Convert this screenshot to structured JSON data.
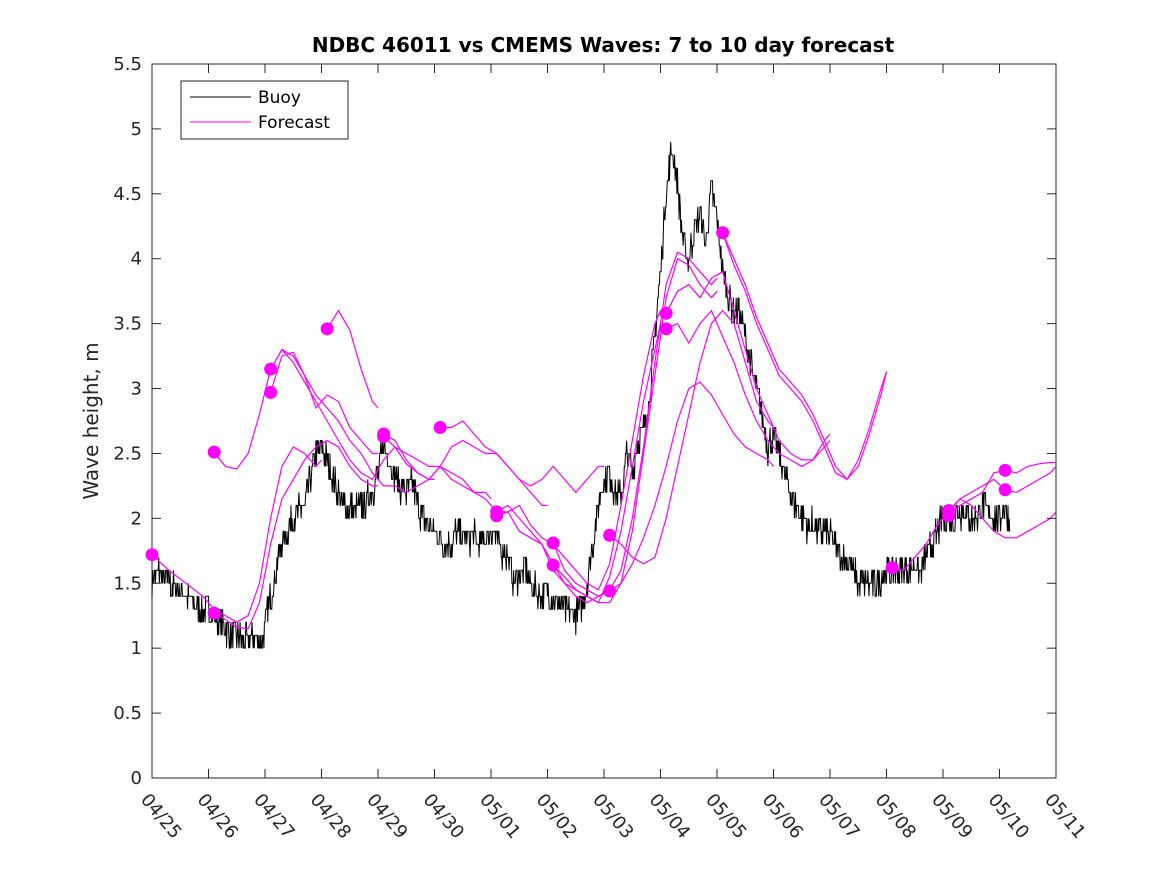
{
  "chart_data": {
    "type": "line",
    "title": "NDBC 46011 vs CMEMS Waves: 7 to 10 day forecast",
    "xlabel": "",
    "ylabel": "Wave height, m",
    "x_tick_labels": [
      "04/25",
      "04/26",
      "04/27",
      "04/28",
      "04/29",
      "04/30",
      "05/01",
      "05/02",
      "05/03",
      "05/04",
      "05/05",
      "05/06",
      "05/07",
      "05/08",
      "05/09",
      "05/10",
      "05/11"
    ],
    "xlim_days": [
      0,
      16
    ],
    "ylim": [
      0,
      5.5
    ],
    "y_ticks": [
      0,
      0.5,
      1,
      1.5,
      2,
      2.5,
      3,
      3.5,
      4,
      4.5,
      5,
      5.5
    ],
    "y_tick_labels": [
      "0",
      "0.5",
      "1",
      "1.5",
      "2",
      "2.5",
      "3",
      "3.5",
      "4",
      "4.5",
      "5",
      "5.5"
    ],
    "grid": false,
    "legend": {
      "placement": "top-left",
      "entries": [
        {
          "name": "Buoy",
          "color": "#000000"
        },
        {
          "name": "Forecast",
          "color": "#ff00ff"
        }
      ]
    },
    "buoy_color": "#000000",
    "forecast_color": "#ff00ff",
    "buoy": {
      "name": "Buoy",
      "x": [
        0,
        0.1,
        0.2,
        0.3,
        0.4,
        0.5,
        0.6,
        0.7,
        0.8,
        0.9,
        1.0,
        1.1,
        1.2,
        1.3,
        1.4,
        1.5,
        1.6,
        1.7,
        1.8,
        1.9,
        2.0,
        2.1,
        2.2,
        2.3,
        2.4,
        2.5,
        2.6,
        2.7,
        2.8,
        2.9,
        3.0,
        3.1,
        3.2,
        3.3,
        3.4,
        3.5,
        3.6,
        3.7,
        3.8,
        3.9,
        4.0,
        4.1,
        4.2,
        4.3,
        4.4,
        4.5,
        4.6,
        4.7,
        4.8,
        4.9,
        5.0,
        5.1,
        5.2,
        5.3,
        5.4,
        5.5,
        5.6,
        5.7,
        5.8,
        5.9,
        6.0,
        6.1,
        6.2,
        6.3,
        6.4,
        6.5,
        6.6,
        6.7,
        6.8,
        6.9,
        7.0,
        7.1,
        7.2,
        7.3,
        7.4,
        7.5,
        7.6,
        7.7,
        7.8,
        7.9,
        8.0,
        8.1,
        8.2,
        8.3,
        8.4,
        8.5,
        8.6,
        8.7,
        8.8,
        8.9,
        9.0,
        9.1,
        9.2,
        9.3,
        9.4,
        9.5,
        9.6,
        9.7,
        9.8,
        9.9,
        10.0,
        10.1,
        10.2,
        10.3,
        10.4,
        10.5,
        10.6,
        10.7,
        10.8,
        10.9,
        11.0,
        11.1,
        11.2,
        11.3,
        11.4,
        11.5,
        11.6,
        11.7,
        11.8,
        11.9,
        12.0,
        12.1,
        12.2,
        12.3,
        12.4,
        12.5,
        12.6,
        12.7,
        12.8,
        12.9,
        13.0,
        13.1,
        13.2,
        13.3,
        13.4,
        13.5,
        13.6,
        13.7,
        13.8,
        13.9,
        14.0,
        14.1,
        14.2,
        14.3,
        14.4,
        14.5,
        14.6,
        14.7,
        14.8,
        14.9,
        15.0,
        15.1,
        15.2
      ],
      "y": [
        1.5,
        1.6,
        1.55,
        1.5,
        1.45,
        1.45,
        1.4,
        1.35,
        1.3,
        1.3,
        1.3,
        1.25,
        1.2,
        1.15,
        1.1,
        1.1,
        1.05,
        1.05,
        1.1,
        1.05,
        1.15,
        1.4,
        1.6,
        1.8,
        1.9,
        2.0,
        2.05,
        2.1,
        2.3,
        2.5,
        2.55,
        2.45,
        2.3,
        2.2,
        2.1,
        2.1,
        2.05,
        2.1,
        2.15,
        2.2,
        2.35,
        2.55,
        2.45,
        2.3,
        2.25,
        2.2,
        2.3,
        2.1,
        2.0,
        1.95,
        1.9,
        1.85,
        1.8,
        1.8,
        1.9,
        1.85,
        1.85,
        1.85,
        1.8,
        1.85,
        1.9,
        1.85,
        1.75,
        1.7,
        1.5,
        1.55,
        1.65,
        1.5,
        1.45,
        1.4,
        1.45,
        1.4,
        1.35,
        1.3,
        1.3,
        1.25,
        1.3,
        1.5,
        1.8,
        2.1,
        2.3,
        2.35,
        2.2,
        2.2,
        2.5,
        2.35,
        2.6,
        2.7,
        2.9,
        3.4,
        3.9,
        4.5,
        4.85,
        4.6,
        4.1,
        4.0,
        4.2,
        4.35,
        4.1,
        4.55,
        4.3,
        3.9,
        3.7,
        3.6,
        3.6,
        3.4,
        3.2,
        3.0,
        2.8,
        2.55,
        2.65,
        2.5,
        2.35,
        2.2,
        2.1,
        2.0,
        1.95,
        1.95,
        1.9,
        1.9,
        1.85,
        1.8,
        1.7,
        1.7,
        1.6,
        1.5,
        1.5,
        1.5,
        1.5,
        1.55,
        1.6,
        1.55,
        1.6,
        1.6,
        1.6,
        1.65,
        1.6,
        1.7,
        1.8,
        1.9,
        2.0,
        2.0,
        2.0,
        2.05,
        2.05,
        2.0,
        2.0,
        2.1,
        2.05,
        2.0,
        2.0,
        2.1,
        1.95
      ]
    },
    "forecast_runs": [
      {
        "x": [
          0,
          0.3,
          0.6,
          0.9,
          1.1,
          1.3,
          1.5,
          1.7,
          1.9,
          2.1,
          2.3,
          2.5,
          2.7,
          2.9,
          3.0
        ],
        "y": [
          1.72,
          1.6,
          1.5,
          1.4,
          1.3,
          1.25,
          1.2,
          1.25,
          1.5,
          2.0,
          2.4,
          2.55,
          2.5,
          2.4,
          2.45
        ]
      },
      {
        "x": [
          1.1,
          1.3,
          1.5,
          1.7,
          1.9,
          2.1,
          2.3,
          2.5,
          2.7,
          2.9,
          3.1,
          3.3,
          3.5,
          3.7,
          3.9,
          4.0
        ],
        "y": [
          1.27,
          1.22,
          1.16,
          1.15,
          1.35,
          1.8,
          2.15,
          2.3,
          2.45,
          2.55,
          2.6,
          2.55,
          2.4,
          2.3,
          2.25,
          2.25
        ]
      },
      {
        "x": [
          1.1,
          1.3,
          1.5,
          1.7,
          1.9,
          2.1,
          2.3,
          2.5,
          2.7,
          2.9,
          3.1,
          3.3,
          3.5,
          3.7,
          3.9,
          4.1,
          4.3,
          4.5,
          4.7,
          4.9,
          5.0
        ],
        "y": [
          2.51,
          2.4,
          2.38,
          2.5,
          2.8,
          3.15,
          3.3,
          3.25,
          3.1,
          2.95,
          2.85,
          2.75,
          2.6,
          2.5,
          2.35,
          2.25,
          2.25,
          2.2,
          2.25,
          2.3,
          2.3
        ]
      },
      {
        "x": [
          2.1,
          2.3,
          2.5,
          2.7,
          2.9,
          3.1,
          3.3,
          3.5,
          3.7,
          3.9,
          4.1,
          4.3,
          4.5,
          4.7,
          4.9,
          5.1,
          5.3,
          5.5,
          5.7,
          5.9,
          6.0
        ],
        "y": [
          3.15,
          3.3,
          3.2,
          3.05,
          2.9,
          2.75,
          2.6,
          2.45,
          2.35,
          2.3,
          2.45,
          2.55,
          2.5,
          2.45,
          2.4,
          2.4,
          2.3,
          2.25,
          2.2,
          2.2,
          2.15
        ]
      },
      {
        "x": [
          2.1,
          2.3,
          2.5,
          2.7,
          2.9,
          3.1,
          3.3,
          3.5,
          3.7,
          3.9,
          4.0
        ],
        "y": [
          2.97,
          3.25,
          3.28,
          3.1,
          2.85,
          2.95,
          2.9,
          2.7,
          2.6,
          2.5,
          2.5
        ]
      },
      {
        "x": [
          3.1,
          3.3,
          3.5,
          3.7,
          3.9,
          4.0
        ],
        "y": [
          3.46,
          3.6,
          3.45,
          3.15,
          2.9,
          2.85
        ]
      },
      {
        "x": [
          4.1,
          4.3,
          4.5,
          4.7,
          4.9,
          5.1,
          5.3,
          5.5,
          5.7,
          5.9,
          6.1,
          6.3,
          6.5,
          6.7,
          6.9,
          7.1,
          7.3,
          7.5,
          7.7,
          7.9,
          8.0
        ],
        "y": [
          2.65,
          2.6,
          2.45,
          2.35,
          2.3,
          2.4,
          2.35,
          2.3,
          2.2,
          2.15,
          2.05,
          2.05,
          1.9,
          1.85,
          1.8,
          1.65,
          1.5,
          1.4,
          1.35,
          1.4,
          1.42
        ]
      },
      {
        "x": [
          4.1,
          4.3,
          4.5,
          4.7,
          4.9,
          5.1,
          5.3,
          5.5,
          5.7,
          5.9,
          6.1,
          6.3,
          6.5,
          6.7,
          6.9,
          7.0
        ],
        "y": [
          2.63,
          2.55,
          2.42,
          2.35,
          2.3,
          2.4,
          2.55,
          2.6,
          2.55,
          2.5,
          2.5,
          2.4,
          2.3,
          2.2,
          2.1,
          2.1
        ]
      },
      {
        "x": [
          5.1,
          5.3,
          5.5,
          5.7,
          5.9,
          6.1,
          6.3,
          6.5,
          6.7,
          6.9,
          7.1,
          7.3,
          7.5,
          7.7,
          7.9,
          8.0
        ],
        "y": [
          2.7,
          2.7,
          2.75,
          2.65,
          2.55,
          2.5,
          2.4,
          2.3,
          2.25,
          2.3,
          2.4,
          2.3,
          2.2,
          2.3,
          2.4,
          2.4
        ]
      },
      {
        "x": [
          6.1,
          6.3,
          6.5,
          6.7,
          6.9,
          7.1,
          7.3,
          7.5,
          7.7,
          7.9,
          8.1,
          8.3,
          8.5,
          8.7,
          8.9,
          9.0
        ],
        "y": [
          2.05,
          2.1,
          2.0,
          1.9,
          1.8,
          1.6,
          1.5,
          1.45,
          1.4,
          1.35,
          1.55,
          1.9,
          2.4,
          2.9,
          3.3,
          3.5
        ]
      },
      {
        "x": [
          6.1,
          6.3,
          6.5,
          6.7,
          6.9,
          7.1,
          7.3,
          7.5,
          7.7,
          7.9,
          8.1,
          8.3,
          8.5,
          8.7,
          8.9,
          9.0
        ],
        "y": [
          2.02,
          2.05,
          2.1,
          1.95,
          1.85,
          1.8,
          1.7,
          1.6,
          1.5,
          1.45,
          1.65,
          2.1,
          2.6,
          3.1,
          3.5,
          3.6
        ]
      },
      {
        "x": [
          7.1,
          7.3,
          7.5,
          7.7,
          7.9,
          8.1,
          8.3,
          8.5,
          8.7,
          8.9,
          9.1,
          9.3,
          9.5,
          9.7,
          9.9,
          10.0
        ],
        "y": [
          1.81,
          1.6,
          1.5,
          1.45,
          1.4,
          1.45,
          1.6,
          2.0,
          2.55,
          3.2,
          3.8,
          4.05,
          4.0,
          3.9,
          3.8,
          3.85
        ]
      },
      {
        "x": [
          7.1,
          7.3,
          7.5,
          7.7,
          7.9,
          8.1,
          8.3,
          8.5,
          8.7,
          8.9,
          9.1,
          9.3,
          9.5,
          9.7,
          9.9,
          10.0
        ],
        "y": [
          1.64,
          1.55,
          1.45,
          1.4,
          1.35,
          1.35,
          1.5,
          1.9,
          2.5,
          3.1,
          3.7,
          4.0,
          3.95,
          3.8,
          3.7,
          3.75
        ]
      },
      {
        "x": [
          8.1,
          8.3,
          8.5,
          8.7,
          8.9,
          9.1,
          9.3,
          9.5,
          9.7,
          9.9,
          10.1,
          10.3,
          10.5,
          10.7,
          10.9,
          11.0
        ],
        "y": [
          1.87,
          1.8,
          1.7,
          1.65,
          1.7,
          2.0,
          2.4,
          2.8,
          3.2,
          3.5,
          3.6,
          3.5,
          3.2,
          2.9,
          2.75,
          2.7
        ]
      },
      {
        "x": [
          8.1,
          8.3,
          8.5,
          8.7,
          8.9,
          9.1,
          9.3,
          9.5,
          9.7,
          9.9,
          10.1,
          10.3,
          10.5,
          10.7,
          10.9,
          11.0
        ],
        "y": [
          1.44,
          1.5,
          1.65,
          1.85,
          2.1,
          2.4,
          2.75,
          3.0,
          3.05,
          2.95,
          2.8,
          2.65,
          2.55,
          2.5,
          2.45,
          2.4
        ]
      },
      {
        "x": [
          9.1,
          9.3,
          9.5,
          9.7,
          9.9,
          10.1,
          10.3,
          10.5,
          10.7,
          10.9,
          11.1,
          11.3,
          11.5,
          11.7,
          11.9,
          12.0
        ],
        "y": [
          3.58,
          3.75,
          3.8,
          3.7,
          3.85,
          3.9,
          3.6,
          3.3,
          3.0,
          2.8,
          2.6,
          2.5,
          2.45,
          2.45,
          2.55,
          2.6
        ]
      },
      {
        "x": [
          9.1,
          9.3,
          9.5,
          9.7,
          9.9,
          10.1,
          10.3,
          10.5,
          10.7,
          10.9,
          11.1,
          11.3,
          11.5,
          11.7,
          11.9,
          12.0
        ],
        "y": [
          3.46,
          3.5,
          3.35,
          3.5,
          3.6,
          3.4,
          3.2,
          2.95,
          2.75,
          2.6,
          2.5,
          2.45,
          2.4,
          2.45,
          2.6,
          2.65
        ]
      },
      {
        "x": [
          10.1,
          10.3,
          10.5,
          10.7,
          10.9,
          11.1,
          11.3,
          11.5,
          11.7,
          11.9,
          12.1,
          12.3,
          12.5,
          12.7,
          12.9,
          13.0
        ],
        "y": [
          4.2,
          4.0,
          3.8,
          3.55,
          3.35,
          3.15,
          3.05,
          2.95,
          2.8,
          2.6,
          2.4,
          2.3,
          2.4,
          2.65,
          2.95,
          3.13
        ]
      },
      {
        "x": [
          10.1,
          10.3,
          10.5,
          10.7,
          10.9,
          11.1,
          11.3,
          11.5,
          11.7,
          11.9,
          12.1,
          12.3,
          12.5,
          12.7,
          12.9,
          13.0
        ],
        "y": [
          4.2,
          3.95,
          3.75,
          3.5,
          3.3,
          3.1,
          3.0,
          2.9,
          2.75,
          2.55,
          2.35,
          2.3,
          2.45,
          2.7,
          3.0,
          3.13
        ]
      },
      {
        "x": [
          13.1,
          13.3,
          13.5,
          13.7,
          13.9,
          14.1,
          14.3,
          14.5,
          14.7,
          14.9,
          15.1,
          15.3,
          15.5,
          15.7,
          15.9,
          16.0
        ],
        "y": [
          1.62,
          1.6,
          1.7,
          1.8,
          1.95,
          2.05,
          2.15,
          2.1,
          2.0,
          1.9,
          1.85,
          1.85,
          1.9,
          1.95,
          2.0,
          2.05
        ]
      },
      {
        "x": [
          14.1,
          14.3,
          14.5,
          14.7,
          14.9,
          15.1,
          15.3,
          15.5,
          15.7,
          15.9,
          16.0
        ],
        "y": [
          2.06,
          2.15,
          2.2,
          2.25,
          2.3,
          2.22,
          2.2,
          2.25,
          2.3,
          2.35,
          2.4
        ]
      },
      {
        "x": [
          14.1,
          14.3,
          14.5,
          14.7,
          14.9,
          15.1,
          15.3,
          15.5,
          15.7,
          15.9,
          16.0
        ],
        "y": [
          2.02,
          2.1,
          2.15,
          2.2,
          2.35,
          2.37,
          2.35,
          2.4,
          2.42,
          2.43,
          2.43
        ]
      }
    ],
    "forecast_markers": [
      {
        "x": 0.0,
        "y": 1.72
      },
      {
        "x": 1.1,
        "y": 1.27
      },
      {
        "x": 1.1,
        "y": 2.51
      },
      {
        "x": 2.1,
        "y": 3.15
      },
      {
        "x": 2.1,
        "y": 2.97
      },
      {
        "x": 3.1,
        "y": 3.46
      },
      {
        "x": 4.1,
        "y": 2.65
      },
      {
        "x": 4.1,
        "y": 2.63
      },
      {
        "x": 5.1,
        "y": 2.7
      },
      {
        "x": 6.1,
        "y": 2.05
      },
      {
        "x": 6.1,
        "y": 2.02
      },
      {
        "x": 7.1,
        "y": 1.81
      },
      {
        "x": 7.1,
        "y": 1.64
      },
      {
        "x": 8.1,
        "y": 1.87
      },
      {
        "x": 8.1,
        "y": 1.44
      },
      {
        "x": 9.1,
        "y": 3.58
      },
      {
        "x": 9.1,
        "y": 3.46
      },
      {
        "x": 10.1,
        "y": 4.2
      },
      {
        "x": 13.1,
        "y": 1.62
      },
      {
        "x": 14.1,
        "y": 2.06
      },
      {
        "x": 14.1,
        "y": 2.02
      },
      {
        "x": 15.1,
        "y": 2.37
      },
      {
        "x": 15.1,
        "y": 2.22
      }
    ]
  }
}
